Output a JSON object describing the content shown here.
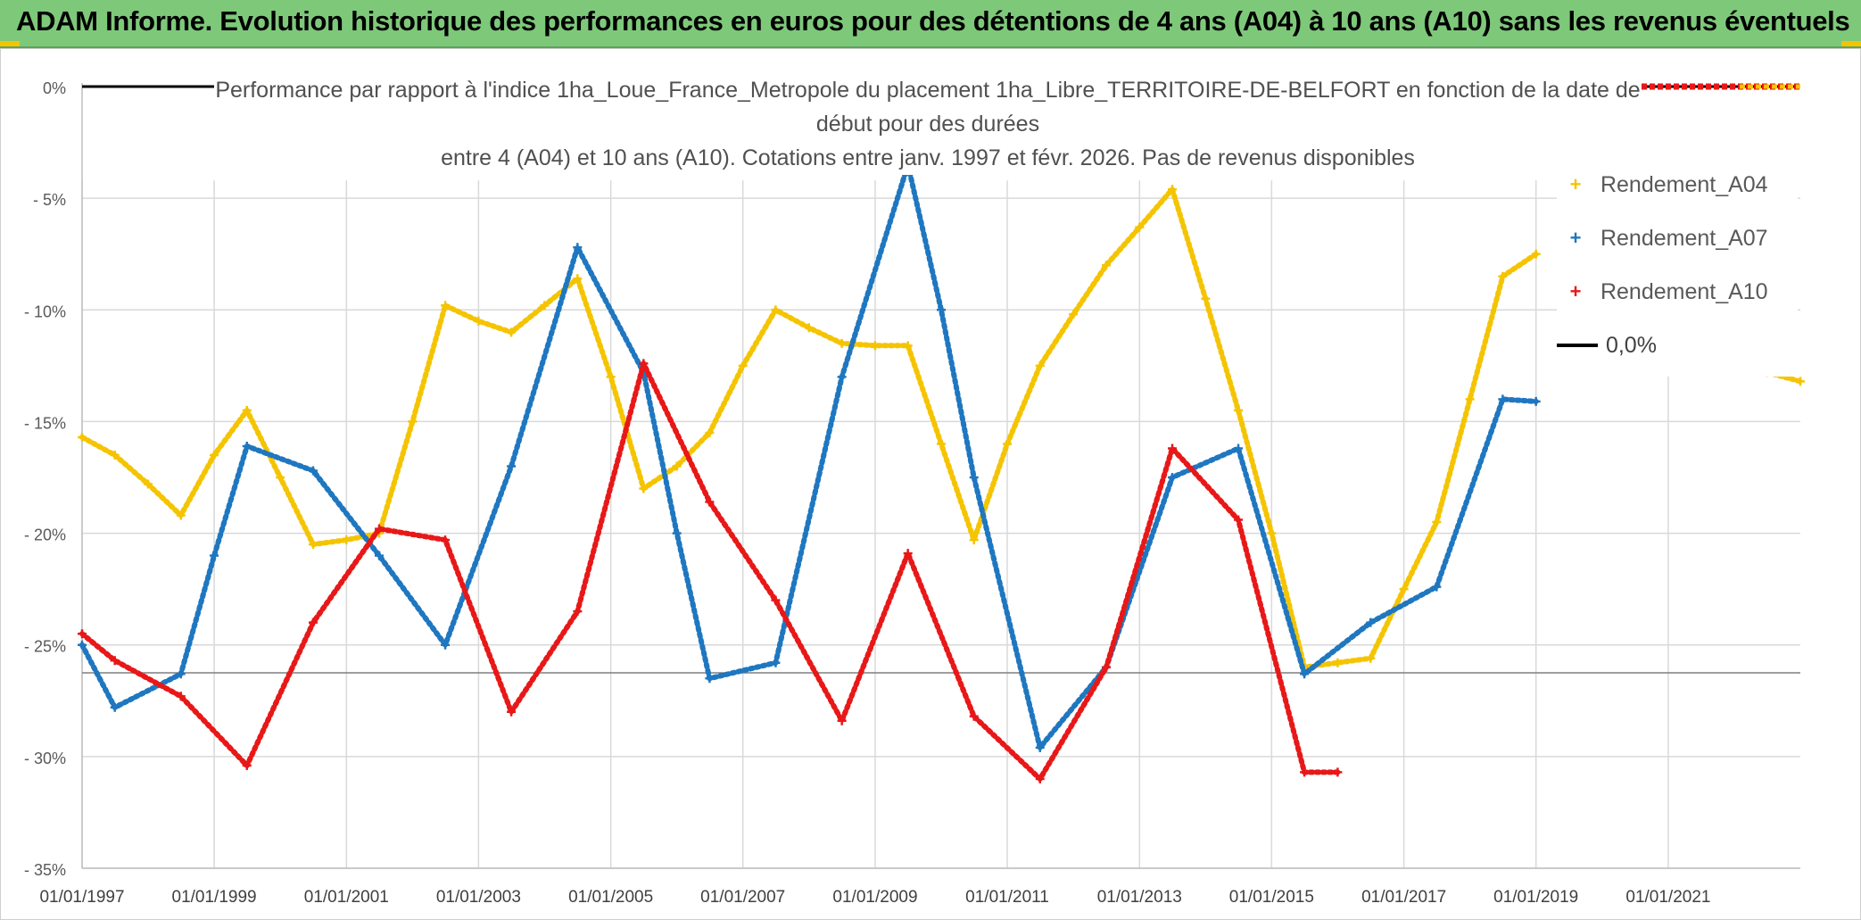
{
  "banner": {
    "title": "ADAM Informe. Evolution historique des performances en euros pour des détentions de 4 ans (A04) à 10 ans (A10) sans les revenus éventuels",
    "color": "#7ec87a"
  },
  "chart_data": {
    "type": "line",
    "title_lines": [
      "Performance par rapport à l'indice 1ha_Loue_France_Metropole  du placement 1ha_Libre_TERRITOIRE-DE-BELFORT en fonction de la date de début pour des durées",
      "entre 4 (A04) et 10 ans (A10). Cotations entre janv. 1997 et févr. 2026. Pas de revenus disponibles"
    ],
    "x_tick_labels": [
      "01/01/1997",
      "01/01/1999",
      "01/01/2001",
      "01/01/2003",
      "01/01/2005",
      "01/01/2007",
      "01/01/2009",
      "01/01/2011",
      "01/01/2013",
      "01/01/2015",
      "01/01/2017",
      "01/01/2019",
      "01/01/2021"
    ],
    "x_range": [
      "1997-01-01",
      "2023-01-01"
    ],
    "y_tick_labels": [
      "0%",
      "- 5%",
      "- 10%",
      "- 15%",
      "- 20%",
      "- 25%",
      "- 30%",
      "- 35%"
    ],
    "ylim": [
      -35,
      0
    ],
    "grid": true,
    "legend_position": "right",
    "series": [
      {
        "name": "Rendement_A04",
        "color": "#f5c400",
        "marker": "+",
        "points": [
          [
            "1997-01-01",
            -15.7
          ],
          [
            "1997-07-01",
            -16.5
          ],
          [
            "1998-01-01",
            -17.8
          ],
          [
            "1998-07-01",
            -19.2
          ],
          [
            "1999-01-01",
            -16.5
          ],
          [
            "1999-07-01",
            -14.5
          ],
          [
            "2000-01-01",
            -17.5
          ],
          [
            "2000-07-01",
            -20.5
          ],
          [
            "2001-01-01",
            -20.3
          ],
          [
            "2001-07-01",
            -20.0
          ],
          [
            "2002-01-01",
            -15.0
          ],
          [
            "2002-07-01",
            -9.8
          ],
          [
            "2003-01-01",
            -10.5
          ],
          [
            "2003-07-01",
            -11.0
          ],
          [
            "2004-01-01",
            -9.8
          ],
          [
            "2004-07-01",
            -8.6
          ],
          [
            "2005-01-01",
            -13.0
          ],
          [
            "2005-07-01",
            -18.0
          ],
          [
            "2006-01-01",
            -17.0
          ],
          [
            "2006-07-01",
            -15.5
          ],
          [
            "2007-01-01",
            -12.5
          ],
          [
            "2007-07-01",
            -10.0
          ],
          [
            "2008-01-01",
            -10.8
          ],
          [
            "2008-07-01",
            -11.5
          ],
          [
            "2009-01-01",
            -11.6
          ],
          [
            "2009-07-01",
            -11.6
          ],
          [
            "2010-01-01",
            -16.0
          ],
          [
            "2010-07-01",
            -20.3
          ],
          [
            "2011-01-01",
            -16.0
          ],
          [
            "2011-07-01",
            -12.5
          ],
          [
            "2012-01-01",
            -10.2
          ],
          [
            "2012-07-01",
            -8.0
          ],
          [
            "2013-01-01",
            -6.3
          ],
          [
            "2013-07-01",
            -4.6
          ],
          [
            "2014-01-01",
            -9.5
          ],
          [
            "2014-07-01",
            -14.5
          ],
          [
            "2015-01-01",
            -20.0
          ],
          [
            "2015-07-01",
            -26.0
          ],
          [
            "2016-01-01",
            -25.8
          ],
          [
            "2016-07-01",
            -25.6
          ],
          [
            "2017-01-01",
            -22.5
          ],
          [
            "2017-07-01",
            -19.5
          ],
          [
            "2018-01-01",
            -14.0
          ],
          [
            "2018-07-01",
            -8.5
          ],
          [
            "2019-01-01",
            -7.5
          ],
          [
            "2022-07-01",
            -12.8
          ],
          [
            "2023-01-01",
            -13.2
          ]
        ]
      },
      {
        "name": "Rendement_A07",
        "color": "#1f77c0",
        "marker": "+",
        "points": [
          [
            "1997-01-01",
            -25.0
          ],
          [
            "1997-07-01",
            -27.8
          ],
          [
            "1998-07-01",
            -26.3
          ],
          [
            "1999-01-01",
            -21.0
          ],
          [
            "1999-07-01",
            -16.1
          ],
          [
            "2000-07-01",
            -17.2
          ],
          [
            "2001-07-01",
            -21.0
          ],
          [
            "2002-07-01",
            -25.0
          ],
          [
            "2003-07-01",
            -17.0
          ],
          [
            "2004-07-01",
            -7.2
          ],
          [
            "2005-07-01",
            -12.8
          ],
          [
            "2006-01-01",
            -20.0
          ],
          [
            "2006-07-01",
            -26.5
          ],
          [
            "2007-07-01",
            -25.8
          ],
          [
            "2008-07-01",
            -13.0
          ],
          [
            "2009-07-01",
            -3.5
          ],
          [
            "2010-01-01",
            -10.0
          ],
          [
            "2010-07-01",
            -17.5
          ],
          [
            "2011-07-01",
            -29.6
          ],
          [
            "2012-07-01",
            -26.0
          ],
          [
            "2013-07-01",
            -17.5
          ],
          [
            "2014-07-01",
            -16.2
          ],
          [
            "2015-07-01",
            -26.3
          ],
          [
            "2016-07-01",
            -24.0
          ],
          [
            "2017-07-01",
            -22.4
          ],
          [
            "2018-07-01",
            -14.0
          ],
          [
            "2019-01-01",
            -14.1
          ]
        ]
      },
      {
        "name": "Rendement_A10",
        "color": "#e81818",
        "marker": "+",
        "points": [
          [
            "1997-01-01",
            -24.5
          ],
          [
            "1997-07-01",
            -25.7
          ],
          [
            "1998-07-01",
            -27.3
          ],
          [
            "1999-07-01",
            -30.4
          ],
          [
            "2000-07-01",
            -24.0
          ],
          [
            "2001-07-01",
            -19.8
          ],
          [
            "2002-07-01",
            -20.3
          ],
          [
            "2003-07-01",
            -28.0
          ],
          [
            "2004-07-01",
            -23.5
          ],
          [
            "2005-07-01",
            -12.4
          ],
          [
            "2006-07-01",
            -18.6
          ],
          [
            "2007-07-01",
            -23.0
          ],
          [
            "2008-07-01",
            -28.4
          ],
          [
            "2009-07-01",
            -20.9
          ],
          [
            "2010-07-01",
            -28.2
          ],
          [
            "2011-07-01",
            -31.0
          ],
          [
            "2012-07-01",
            -26.0
          ],
          [
            "2013-07-01",
            -16.2
          ],
          [
            "2014-07-01",
            -19.4
          ],
          [
            "2015-07-01",
            -30.7
          ],
          [
            "2016-01-01",
            -30.7
          ]
        ]
      },
      {
        "name": "0,0%",
        "color": "#000000",
        "points": [
          [
            "1997-01-01",
            0
          ],
          [
            "2023-01-01",
            0
          ]
        ]
      }
    ],
    "legend": [
      {
        "label": "Rendement_A04",
        "color": "#f5c400",
        "symbol": "+"
      },
      {
        "label": "Rendement_A07",
        "color": "#1f77c0",
        "symbol": "+"
      },
      {
        "label": "Rendement_A10",
        "color": "#e81818",
        "symbol": "+"
      },
      {
        "label": "0,0%",
        "color": "#000000",
        "symbol": "line"
      }
    ]
  }
}
